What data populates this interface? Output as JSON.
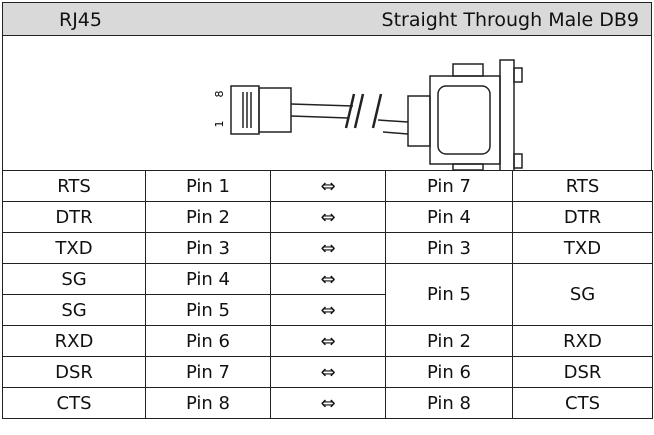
{
  "header": {
    "left": "RJ45",
    "right": "Straight Through Male DB9"
  },
  "image": {
    "pin_labels": [
      "8",
      "1"
    ]
  },
  "table": {
    "rows": [
      [
        "RTS",
        "Pin 1",
        "⇔",
        "Pin 7",
        "RTS"
      ],
      [
        "DTR",
        "Pin 2",
        "⇔",
        "Pin 4",
        "DTR"
      ],
      [
        "TXD",
        "Pin 3",
        "⇔",
        "Pin 3",
        "TXD"
      ],
      [
        "SG",
        "Pin 4",
        "⇔",
        "Pin 5",
        "SG"
      ],
      [
        "SG",
        "Pin 5",
        "⇔"
      ],
      [
        "RXD",
        "Pin 6",
        "⇔",
        "Pin 2",
        "RXD"
      ],
      [
        "DSR",
        "Pin 7",
        "⇔",
        "Pin 6",
        "DSR"
      ],
      [
        "CTS",
        "Pin 8",
        "⇔",
        "Pin 8",
        "CTS"
      ]
    ]
  }
}
